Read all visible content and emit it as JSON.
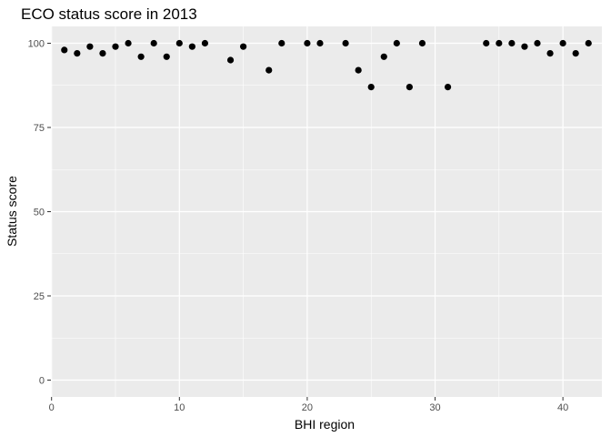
{
  "chart_data": {
    "type": "scatter",
    "title": "ECO status score in 2013",
    "xlabel": "BHI region",
    "ylabel": "Status score",
    "xlim": [
      -0.05,
      43.05
    ],
    "ylim": [
      -5,
      105
    ],
    "x_ticks": [
      0,
      10,
      20,
      30,
      40
    ],
    "y_ticks": [
      0,
      25,
      50,
      75,
      100
    ],
    "x_tick_labels": [
      "0",
      "10",
      "20",
      "30",
      "40"
    ],
    "y_tick_labels": [
      "0",
      "25",
      "50",
      "75",
      "100"
    ],
    "grid": true,
    "panel_color": "#ebebeb",
    "grid_color": "#ffffff",
    "point_color": "#000000",
    "points": [
      {
        "x": 1,
        "y": 98
      },
      {
        "x": 2,
        "y": 97
      },
      {
        "x": 3,
        "y": 99
      },
      {
        "x": 4,
        "y": 97
      },
      {
        "x": 5,
        "y": 99
      },
      {
        "x": 6,
        "y": 100
      },
      {
        "x": 7,
        "y": 96
      },
      {
        "x": 8,
        "y": 100
      },
      {
        "x": 9,
        "y": 96
      },
      {
        "x": 10,
        "y": 100
      },
      {
        "x": 11,
        "y": 99
      },
      {
        "x": 12,
        "y": 100
      },
      {
        "x": 14,
        "y": 95
      },
      {
        "x": 15,
        "y": 99
      },
      {
        "x": 17,
        "y": 92
      },
      {
        "x": 18,
        "y": 100
      },
      {
        "x": 20,
        "y": 100
      },
      {
        "x": 21,
        "y": 100
      },
      {
        "x": 23,
        "y": 100
      },
      {
        "x": 24,
        "y": 92
      },
      {
        "x": 25,
        "y": 87
      },
      {
        "x": 26,
        "y": 96
      },
      {
        "x": 27,
        "y": 100
      },
      {
        "x": 28,
        "y": 87
      },
      {
        "x": 29,
        "y": 100
      },
      {
        "x": 31,
        "y": 87
      },
      {
        "x": 34,
        "y": 100
      },
      {
        "x": 35,
        "y": 100
      },
      {
        "x": 36,
        "y": 100
      },
      {
        "x": 37,
        "y": 99
      },
      {
        "x": 38,
        "y": 100
      },
      {
        "x": 39,
        "y": 97
      },
      {
        "x": 40,
        "y": 100
      },
      {
        "x": 41,
        "y": 97
      },
      {
        "x": 42,
        "y": 100
      }
    ]
  }
}
